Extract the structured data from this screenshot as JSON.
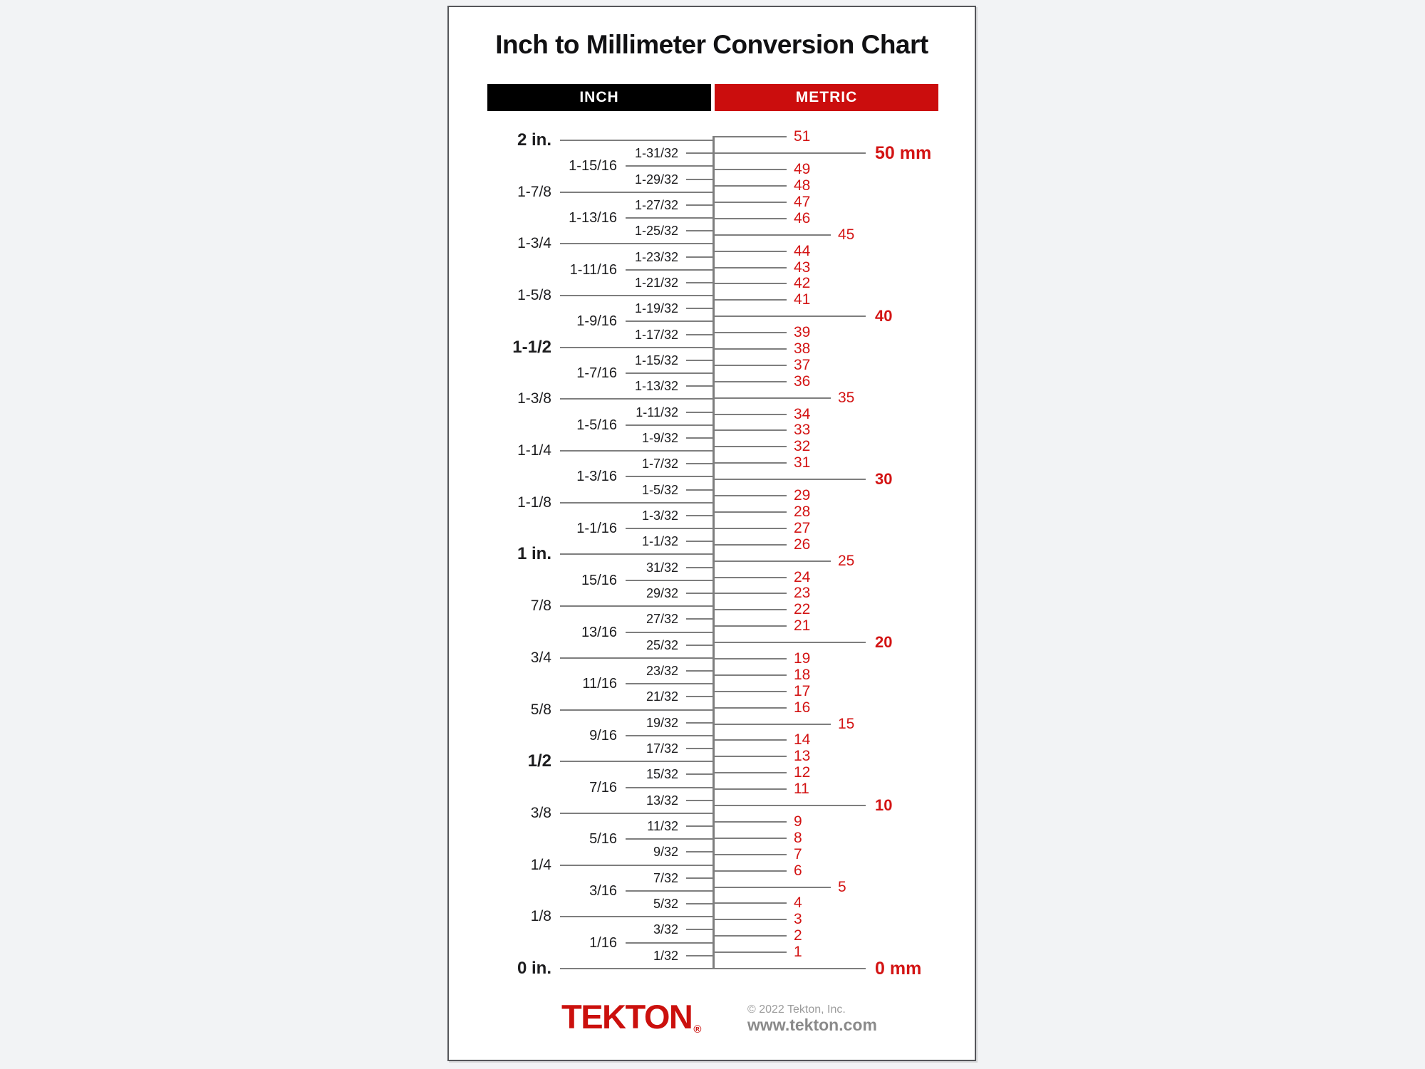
{
  "title": "Inch to Millimeter Conversion Chart",
  "headers": {
    "inch": "INCH",
    "metric": "METRIC"
  },
  "colors": {
    "brand_red": "#cb0d0d",
    "number_red": "#d31414",
    "line_gray": "#7e7e7e",
    "ink": "#1d1d1f",
    "page_bg": "#f2f3f5"
  },
  "footer": {
    "logo": "TEKTON",
    "reg": "®",
    "copyright": "© 2022 Tekton, Inc.",
    "website": "www.tekton.com"
  },
  "chart_data": {
    "type": "table",
    "title": "Inch to Millimeter Conversion Chart",
    "axis": {
      "inch_range_in": [
        0,
        2
      ],
      "inch_step_in": "1/32",
      "mm_range": [
        0,
        51
      ],
      "mm_step": 1,
      "mm_per_inch": 25.4
    },
    "inch_ticks": [
      {
        "n": 64,
        "label": "2 in.",
        "level": 0,
        "bold": true
      },
      {
        "n": 63,
        "label": "1-31/32",
        "level": 2
      },
      {
        "n": 62,
        "label": "1-15/16",
        "level": 1
      },
      {
        "n": 61,
        "label": "1-29/32",
        "level": 2
      },
      {
        "n": 60,
        "label": "1-7/8",
        "level": 0
      },
      {
        "n": 59,
        "label": "1-27/32",
        "level": 2
      },
      {
        "n": 58,
        "label": "1-13/16",
        "level": 1
      },
      {
        "n": 57,
        "label": "1-25/32",
        "level": 2
      },
      {
        "n": 56,
        "label": "1-3/4",
        "level": 0
      },
      {
        "n": 55,
        "label": "1-23/32",
        "level": 2
      },
      {
        "n": 54,
        "label": "1-11/16",
        "level": 1
      },
      {
        "n": 53,
        "label": "1-21/32",
        "level": 2
      },
      {
        "n": 52,
        "label": "1-5/8",
        "level": 0
      },
      {
        "n": 51,
        "label": "1-19/32",
        "level": 2
      },
      {
        "n": 50,
        "label": "1-9/16",
        "level": 1
      },
      {
        "n": 49,
        "label": "1-17/32",
        "level": 2
      },
      {
        "n": 48,
        "label": "1-1/2",
        "level": 0,
        "bold": true
      },
      {
        "n": 47,
        "label": "1-15/32",
        "level": 2
      },
      {
        "n": 46,
        "label": "1-7/16",
        "level": 1
      },
      {
        "n": 45,
        "label": "1-13/32",
        "level": 2
      },
      {
        "n": 44,
        "label": "1-3/8",
        "level": 0
      },
      {
        "n": 43,
        "label": "1-11/32",
        "level": 2
      },
      {
        "n": 42,
        "label": "1-5/16",
        "level": 1
      },
      {
        "n": 41,
        "label": "1-9/32",
        "level": 2
      },
      {
        "n": 40,
        "label": "1-1/4",
        "level": 0
      },
      {
        "n": 39,
        "label": "1-7/32",
        "level": 2
      },
      {
        "n": 38,
        "label": "1-3/16",
        "level": 1
      },
      {
        "n": 37,
        "label": "1-5/32",
        "level": 2
      },
      {
        "n": 36,
        "label": "1-1/8",
        "level": 0
      },
      {
        "n": 35,
        "label": "1-3/32",
        "level": 2
      },
      {
        "n": 34,
        "label": "1-1/16",
        "level": 1
      },
      {
        "n": 33,
        "label": "1-1/32",
        "level": 2
      },
      {
        "n": 32,
        "label": "1 in.",
        "level": 0,
        "bold": true
      },
      {
        "n": 31,
        "label": "31/32",
        "level": 2
      },
      {
        "n": 30,
        "label": "15/16",
        "level": 1
      },
      {
        "n": 29,
        "label": "29/32",
        "level": 2
      },
      {
        "n": 28,
        "label": "7/8",
        "level": 0
      },
      {
        "n": 27,
        "label": "27/32",
        "level": 2
      },
      {
        "n": 26,
        "label": "13/16",
        "level": 1
      },
      {
        "n": 25,
        "label": "25/32",
        "level": 2
      },
      {
        "n": 24,
        "label": "3/4",
        "level": 0
      },
      {
        "n": 23,
        "label": "23/32",
        "level": 2
      },
      {
        "n": 22,
        "label": "11/16",
        "level": 1
      },
      {
        "n": 21,
        "label": "21/32",
        "level": 2
      },
      {
        "n": 20,
        "label": "5/8",
        "level": 0
      },
      {
        "n": 19,
        "label": "19/32",
        "level": 2
      },
      {
        "n": 18,
        "label": "9/16",
        "level": 1
      },
      {
        "n": 17,
        "label": "17/32",
        "level": 2
      },
      {
        "n": 16,
        "label": "1/2",
        "level": 0,
        "bold": true
      },
      {
        "n": 15,
        "label": "15/32",
        "level": 2
      },
      {
        "n": 14,
        "label": "7/16",
        "level": 1
      },
      {
        "n": 13,
        "label": "13/32",
        "level": 2
      },
      {
        "n": 12,
        "label": "3/8",
        "level": 0
      },
      {
        "n": 11,
        "label": "11/32",
        "level": 2
      },
      {
        "n": 10,
        "label": "5/16",
        "level": 1
      },
      {
        "n": 9,
        "label": "9/32",
        "level": 2
      },
      {
        "n": 8,
        "label": "1/4",
        "level": 0
      },
      {
        "n": 7,
        "label": "7/32",
        "level": 2
      },
      {
        "n": 6,
        "label": "3/16",
        "level": 1
      },
      {
        "n": 5,
        "label": "5/32",
        "level": 2
      },
      {
        "n": 4,
        "label": "1/8",
        "level": 0
      },
      {
        "n": 3,
        "label": "3/32",
        "level": 2
      },
      {
        "n": 2,
        "label": "1/16",
        "level": 1
      },
      {
        "n": 1,
        "label": "1/32",
        "level": 2
      },
      {
        "n": 0,
        "label": "0 in.",
        "level": 0,
        "bold": true
      }
    ],
    "mm_ticks": [
      {
        "mm": 51,
        "label": "51",
        "level": "unit"
      },
      {
        "mm": 50,
        "label": "50 mm",
        "level": "end"
      },
      {
        "mm": 49,
        "label": "49",
        "level": "unit"
      },
      {
        "mm": 48,
        "label": "48",
        "level": "unit"
      },
      {
        "mm": 47,
        "label": "47",
        "level": "unit"
      },
      {
        "mm": 46,
        "label": "46",
        "level": "unit"
      },
      {
        "mm": 45,
        "label": "45",
        "level": "five"
      },
      {
        "mm": 44,
        "label": "44",
        "level": "unit"
      },
      {
        "mm": 43,
        "label": "43",
        "level": "unit"
      },
      {
        "mm": 42,
        "label": "42",
        "level": "unit"
      },
      {
        "mm": 41,
        "label": "41",
        "level": "unit"
      },
      {
        "mm": 40,
        "label": "40",
        "level": "ten"
      },
      {
        "mm": 39,
        "label": "39",
        "level": "unit"
      },
      {
        "mm": 38,
        "label": "38",
        "level": "unit"
      },
      {
        "mm": 37,
        "label": "37",
        "level": "unit"
      },
      {
        "mm": 36,
        "label": "36",
        "level": "unit"
      },
      {
        "mm": 35,
        "label": "35",
        "level": "five"
      },
      {
        "mm": 34,
        "label": "34",
        "level": "unit"
      },
      {
        "mm": 33,
        "label": "33",
        "level": "unit"
      },
      {
        "mm": 32,
        "label": "32",
        "level": "unit"
      },
      {
        "mm": 31,
        "label": "31",
        "level": "unit"
      },
      {
        "mm": 30,
        "label": "30",
        "level": "ten"
      },
      {
        "mm": 29,
        "label": "29",
        "level": "unit"
      },
      {
        "mm": 28,
        "label": "28",
        "level": "unit"
      },
      {
        "mm": 27,
        "label": "27",
        "level": "unit"
      },
      {
        "mm": 26,
        "label": "26",
        "level": "unit"
      },
      {
        "mm": 25,
        "label": "25",
        "level": "five"
      },
      {
        "mm": 24,
        "label": "24",
        "level": "unit"
      },
      {
        "mm": 23,
        "label": "23",
        "level": "unit"
      },
      {
        "mm": 22,
        "label": "22",
        "level": "unit"
      },
      {
        "mm": 21,
        "label": "21",
        "level": "unit"
      },
      {
        "mm": 20,
        "label": "20",
        "level": "ten"
      },
      {
        "mm": 19,
        "label": "19",
        "level": "unit"
      },
      {
        "mm": 18,
        "label": "18",
        "level": "unit"
      },
      {
        "mm": 17,
        "label": "17",
        "level": "unit"
      },
      {
        "mm": 16,
        "label": "16",
        "level": "unit"
      },
      {
        "mm": 15,
        "label": "15",
        "level": "five"
      },
      {
        "mm": 14,
        "label": "14",
        "level": "unit"
      },
      {
        "mm": 13,
        "label": "13",
        "level": "unit"
      },
      {
        "mm": 12,
        "label": "12",
        "level": "unit"
      },
      {
        "mm": 11,
        "label": "11",
        "level": "unit"
      },
      {
        "mm": 10,
        "label": "10",
        "level": "ten"
      },
      {
        "mm": 9,
        "label": "9",
        "level": "unit"
      },
      {
        "mm": 8,
        "label": "8",
        "level": "unit"
      },
      {
        "mm": 7,
        "label": "7",
        "level": "unit"
      },
      {
        "mm": 6,
        "label": "6",
        "level": "unit"
      },
      {
        "mm": 5,
        "label": "5",
        "level": "five"
      },
      {
        "mm": 4,
        "label": "4",
        "level": "unit"
      },
      {
        "mm": 3,
        "label": "3",
        "level": "unit"
      },
      {
        "mm": 2,
        "label": "2",
        "level": "unit"
      },
      {
        "mm": 1,
        "label": "1",
        "level": "unit"
      },
      {
        "mm": 0,
        "label": "0 mm",
        "level": "end"
      }
    ]
  }
}
